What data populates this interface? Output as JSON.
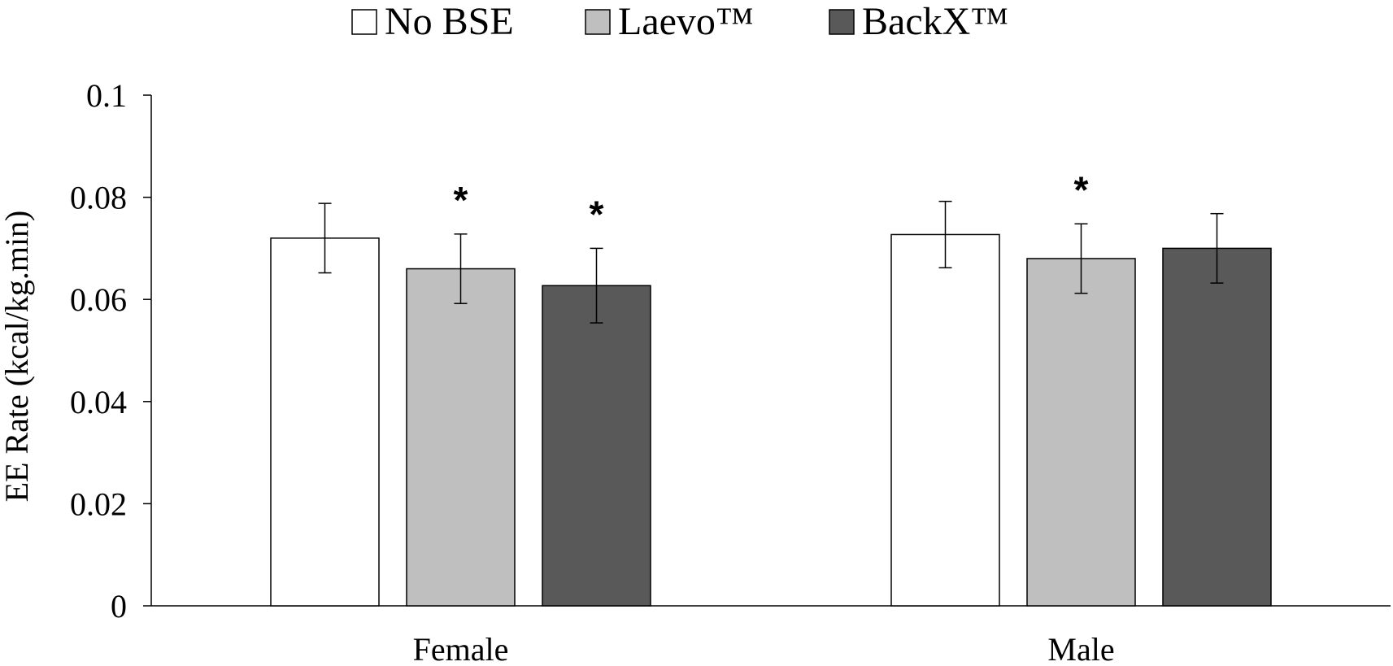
{
  "chart_data": {
    "type": "bar",
    "categories": [
      "Female",
      "Male"
    ],
    "series": [
      {
        "name": "No BSE",
        "color": "#ffffff",
        "values": [
          0.072,
          0.0727
        ],
        "errors": [
          0.0068,
          0.0065
        ],
        "significance": [
          "",
          ""
        ]
      },
      {
        "name": "Laevo™",
        "color": "#bfbfbf",
        "values": [
          0.066,
          0.068
        ],
        "errors": [
          0.0068,
          0.0068
        ],
        "significance": [
          "*",
          "*"
        ]
      },
      {
        "name": "BackX™",
        "color": "#595959",
        "values": [
          0.0627,
          0.07
        ],
        "errors": [
          0.0073,
          0.0068
        ],
        "significance": [
          "*",
          ""
        ]
      }
    ],
    "ylabel": "EE Rate (kcal/kg.min)",
    "xlabel": "",
    "ylim": [
      0,
      0.1
    ],
    "yticks": [
      "0",
      "0.02",
      "0.04",
      "0.06",
      "0.08",
      "0.1"
    ],
    "grid": false,
    "legend_position": "top-center"
  }
}
